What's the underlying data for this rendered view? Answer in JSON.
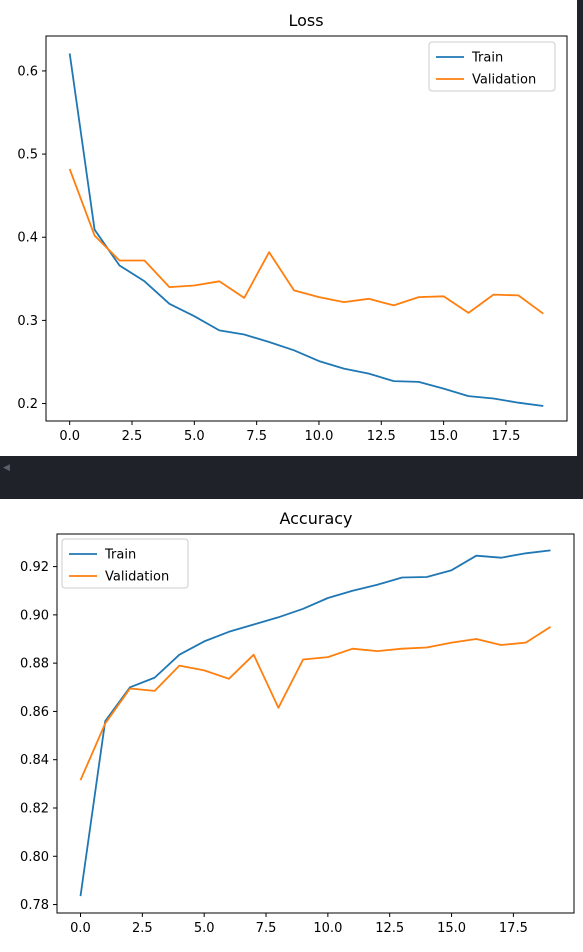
{
  "chart_data": [
    {
      "type": "line",
      "title": "Loss",
      "xlabel": "",
      "ylabel": "",
      "xlim": [
        -0.95,
        19.95
      ],
      "ylim": [
        0.179,
        0.642
      ],
      "xticks": [
        0,
        2.5,
        5,
        7.5,
        10,
        12.5,
        15,
        17.5
      ],
      "xtick_labels": [
        "0.0",
        "2.5",
        "5.0",
        "7.5",
        "10.0",
        "12.5",
        "15.0",
        "17.5"
      ],
      "yticks": [
        0.2,
        0.3,
        0.4,
        0.5,
        0.6
      ],
      "ytick_labels": [
        "0.2",
        "0.3",
        "0.4",
        "0.5",
        "0.6"
      ],
      "legend_position": "top-right",
      "grid": false,
      "x": [
        0,
        1,
        2,
        3,
        4,
        5,
        6,
        7,
        8,
        9,
        10,
        11,
        12,
        13,
        14,
        15,
        16,
        17,
        18,
        19
      ],
      "series": [
        {
          "name": "Train",
          "color": "#1f77b4",
          "values": [
            0.621,
            0.409,
            0.366,
            0.347,
            0.32,
            0.305,
            0.288,
            0.283,
            0.274,
            0.264,
            0.251,
            0.242,
            0.236,
            0.227,
            0.226,
            0.218,
            0.209,
            0.206,
            0.201,
            0.197
          ]
        },
        {
          "name": "Validation",
          "color": "#ff7f0e",
          "values": [
            0.482,
            0.402,
            0.372,
            0.372,
            0.34,
            0.342,
            0.347,
            0.327,
            0.382,
            0.336,
            0.328,
            0.322,
            0.326,
            0.318,
            0.328,
            0.329,
            0.309,
            0.331,
            0.33,
            0.308
          ]
        }
      ]
    },
    {
      "type": "line",
      "title": "Accuracy",
      "xlabel": "",
      "ylabel": "",
      "xlim": [
        -0.95,
        19.95
      ],
      "ylim": [
        0.7765,
        0.9335
      ],
      "xticks": [
        0,
        2.5,
        5,
        7.5,
        10,
        12.5,
        15,
        17.5
      ],
      "xtick_labels": [
        "0.0",
        "2.5",
        "5.0",
        "7.5",
        "10.0",
        "12.5",
        "15.0",
        "17.5"
      ],
      "yticks": [
        0.78,
        0.8,
        0.82,
        0.84,
        0.86,
        0.88,
        0.9,
        0.92
      ],
      "ytick_labels": [
        "0.78",
        "0.80",
        "0.82",
        "0.84",
        "0.86",
        "0.88",
        "0.90",
        "0.92"
      ],
      "legend_position": "top-left",
      "grid": false,
      "x": [
        0,
        1,
        2,
        3,
        4,
        5,
        6,
        7,
        8,
        9,
        10,
        11,
        12,
        13,
        14,
        15,
        16,
        17,
        18,
        19
      ],
      "series": [
        {
          "name": "Train",
          "color": "#1f77b4",
          "values": [
            0.7835,
            0.856,
            0.87,
            0.874,
            0.8835,
            0.889,
            0.893,
            0.896,
            0.899,
            0.9025,
            0.907,
            0.91,
            0.9125,
            0.9155,
            0.9157,
            0.9185,
            0.9245,
            0.9237,
            0.9255,
            0.9267
          ]
        },
        {
          "name": "Validation",
          "color": "#ff7f0e",
          "values": [
            0.8315,
            0.855,
            0.8695,
            0.8685,
            0.879,
            0.877,
            0.8735,
            0.8835,
            0.8615,
            0.8815,
            0.8825,
            0.886,
            0.885,
            0.886,
            0.8865,
            0.8885,
            0.89,
            0.8875,
            0.8885,
            0.895
          ]
        }
      ]
    }
  ]
}
